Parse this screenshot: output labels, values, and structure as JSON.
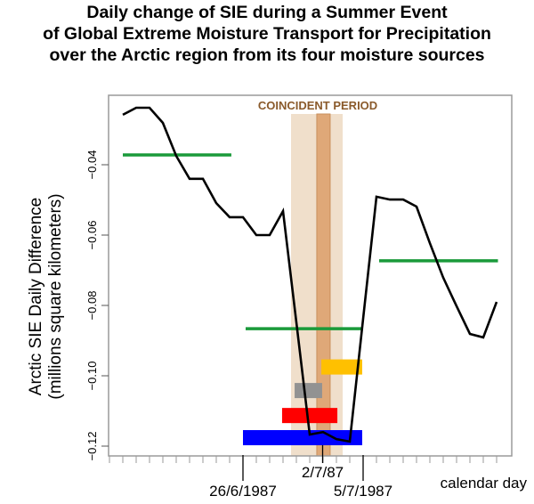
{
  "chart_data": {
    "type": "line",
    "title": [
      "Daily change of SIE during a Summer Event",
      "of Global Extreme Moisture Transport for Precipitation",
      "over the Arctic region from its four moisture sources"
    ],
    "xlabel": "calendar day",
    "ylabel": [
      "Arctic SIE Daily Difference",
      "(millions square kilometers)"
    ],
    "xlim": [
      0,
      30
    ],
    "ylim": [
      -0.1215,
      -0.0203
    ],
    "grid": false,
    "yticks": [
      -0.04,
      -0.06,
      -0.08,
      -0.1,
      -0.12
    ],
    "ytick_labels": [
      "-0.04",
      "-0.06",
      "-0.08",
      "-0.10",
      "-0.12"
    ],
    "xticks_minor": [
      0,
      1,
      2,
      3,
      4,
      5,
      6,
      7,
      8,
      9,
      10,
      11,
      12,
      13,
      14,
      15,
      16,
      17,
      18,
      19,
      20,
      21,
      22,
      23,
      24,
      25,
      26,
      27,
      28,
      29
    ],
    "xticks_major": [
      {
        "x": 10,
        "label": "26/6/1987"
      },
      {
        "x": 19,
        "label": "5/7/1987"
      }
    ],
    "xtick_inner": {
      "x": 16,
      "label": "2/7/87"
    },
    "series": [
      {
        "name": "SIE daily difference",
        "color": "#000000",
        "x": [
          1,
          2,
          3,
          4,
          5,
          6,
          7,
          8,
          9,
          10,
          11,
          12,
          13,
          14,
          15,
          16,
          17,
          18,
          19,
          20,
          21,
          22,
          23,
          24,
          25,
          26,
          27,
          28,
          29
        ],
        "values": [
          -0.0258,
          -0.0238,
          -0.0238,
          -0.0281,
          -0.0375,
          -0.044,
          -0.044,
          -0.0509,
          -0.0549,
          -0.0549,
          -0.06,
          -0.06,
          -0.0532,
          -0.0848,
          -0.1167,
          -0.116,
          -0.118,
          -0.1187,
          -0.0838,
          -0.0491,
          -0.0499,
          -0.0499,
          -0.0519,
          -0.0623,
          -0.0721,
          -0.0802,
          -0.0881,
          -0.0891,
          -0.079
        ]
      }
    ],
    "mean_segments": [
      {
        "name": "mean-before",
        "color": "#1a9a3a",
        "x0": 1,
        "x1": 9.13,
        "y": -0.0372
      },
      {
        "name": "mean-during",
        "color": "#1a9a3a",
        "x0": 10.2,
        "x1": 19,
        "y": -0.0866
      },
      {
        "name": "mean-after",
        "color": "#1a9a3a",
        "x0": 20.2,
        "x1": 29.1,
        "y": -0.0673
      }
    ],
    "source_bars": [
      {
        "name": "source-yellow",
        "color": "#ffc000",
        "x0": 15.87,
        "x1": 18.93,
        "y": -0.0975
      },
      {
        "name": "source-gray",
        "color": "#929292",
        "x0": 13.87,
        "x1": 15.93,
        "y": -0.1042
      },
      {
        "name": "source-red",
        "color": "#ff0000",
        "x0": 12.93,
        "x1": 17.07,
        "y": -0.1113
      },
      {
        "name": "source-blue",
        "color": "#0000ff",
        "x0": 10,
        "x1": 18.93,
        "y": -0.1176
      }
    ],
    "coincident_period": {
      "label": "COINCIDENT PERIOD",
      "outer": {
        "x0": 13.6,
        "x1": 17.47,
        "color": "#f0dfcb"
      },
      "inner": {
        "x0": 15.53,
        "x1": 16.53,
        "color": "#dfa878",
        "border": "#c98f5c"
      }
    }
  }
}
